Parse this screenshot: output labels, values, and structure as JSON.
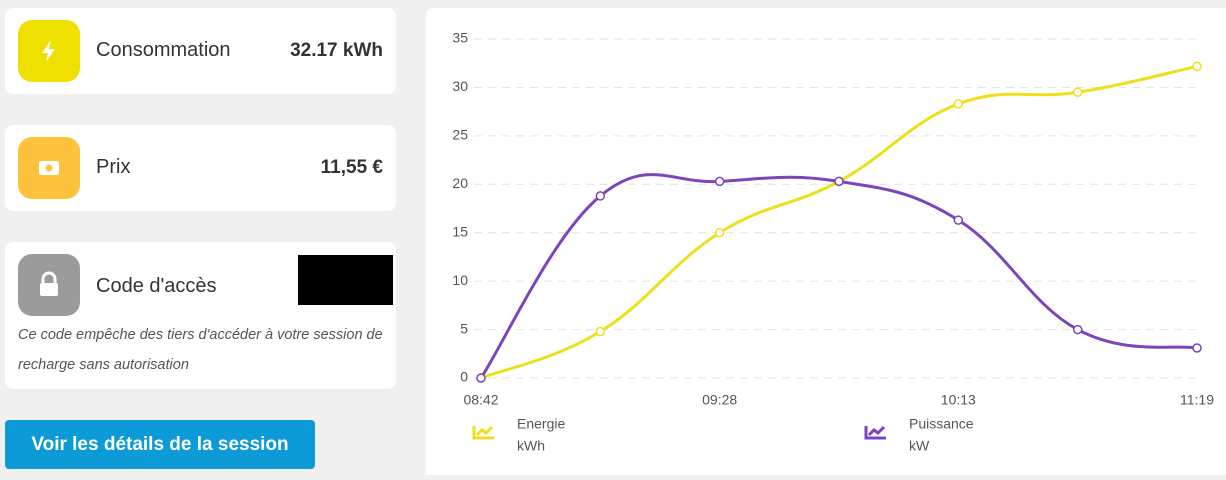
{
  "cards": {
    "consumption": {
      "label": "Consommation",
      "value": "32.17 kWh"
    },
    "price": {
      "label": "Prix",
      "value": "11,55 €"
    },
    "access_code": {
      "label": "Code d'accès",
      "note": "Ce code empêche des tiers d'accéder à votre session de recharge sans autorisation"
    }
  },
  "button": "Voir les détails de la session",
  "chart_data": {
    "type": "line",
    "categories": [
      "08:42",
      null,
      "09:28",
      null,
      "10:13",
      null,
      "11:19"
    ],
    "series": [
      {
        "name": "Energie",
        "unit": "kWh",
        "color": "#eedf1c",
        "values": [
          0,
          4.8,
          15,
          20.3,
          28.3,
          29.5,
          32.17
        ]
      },
      {
        "name": "Puissance",
        "unit": "kW",
        "color": "#7e44bb",
        "values": [
          0,
          18.8,
          20.3,
          20.3,
          16.3,
          5,
          3.1
        ]
      }
    ],
    "ylim": [
      0,
      35
    ],
    "yticks": [
      0,
      5,
      10,
      15,
      20,
      25,
      30,
      35
    ],
    "grid": true,
    "legend": "bottom"
  }
}
